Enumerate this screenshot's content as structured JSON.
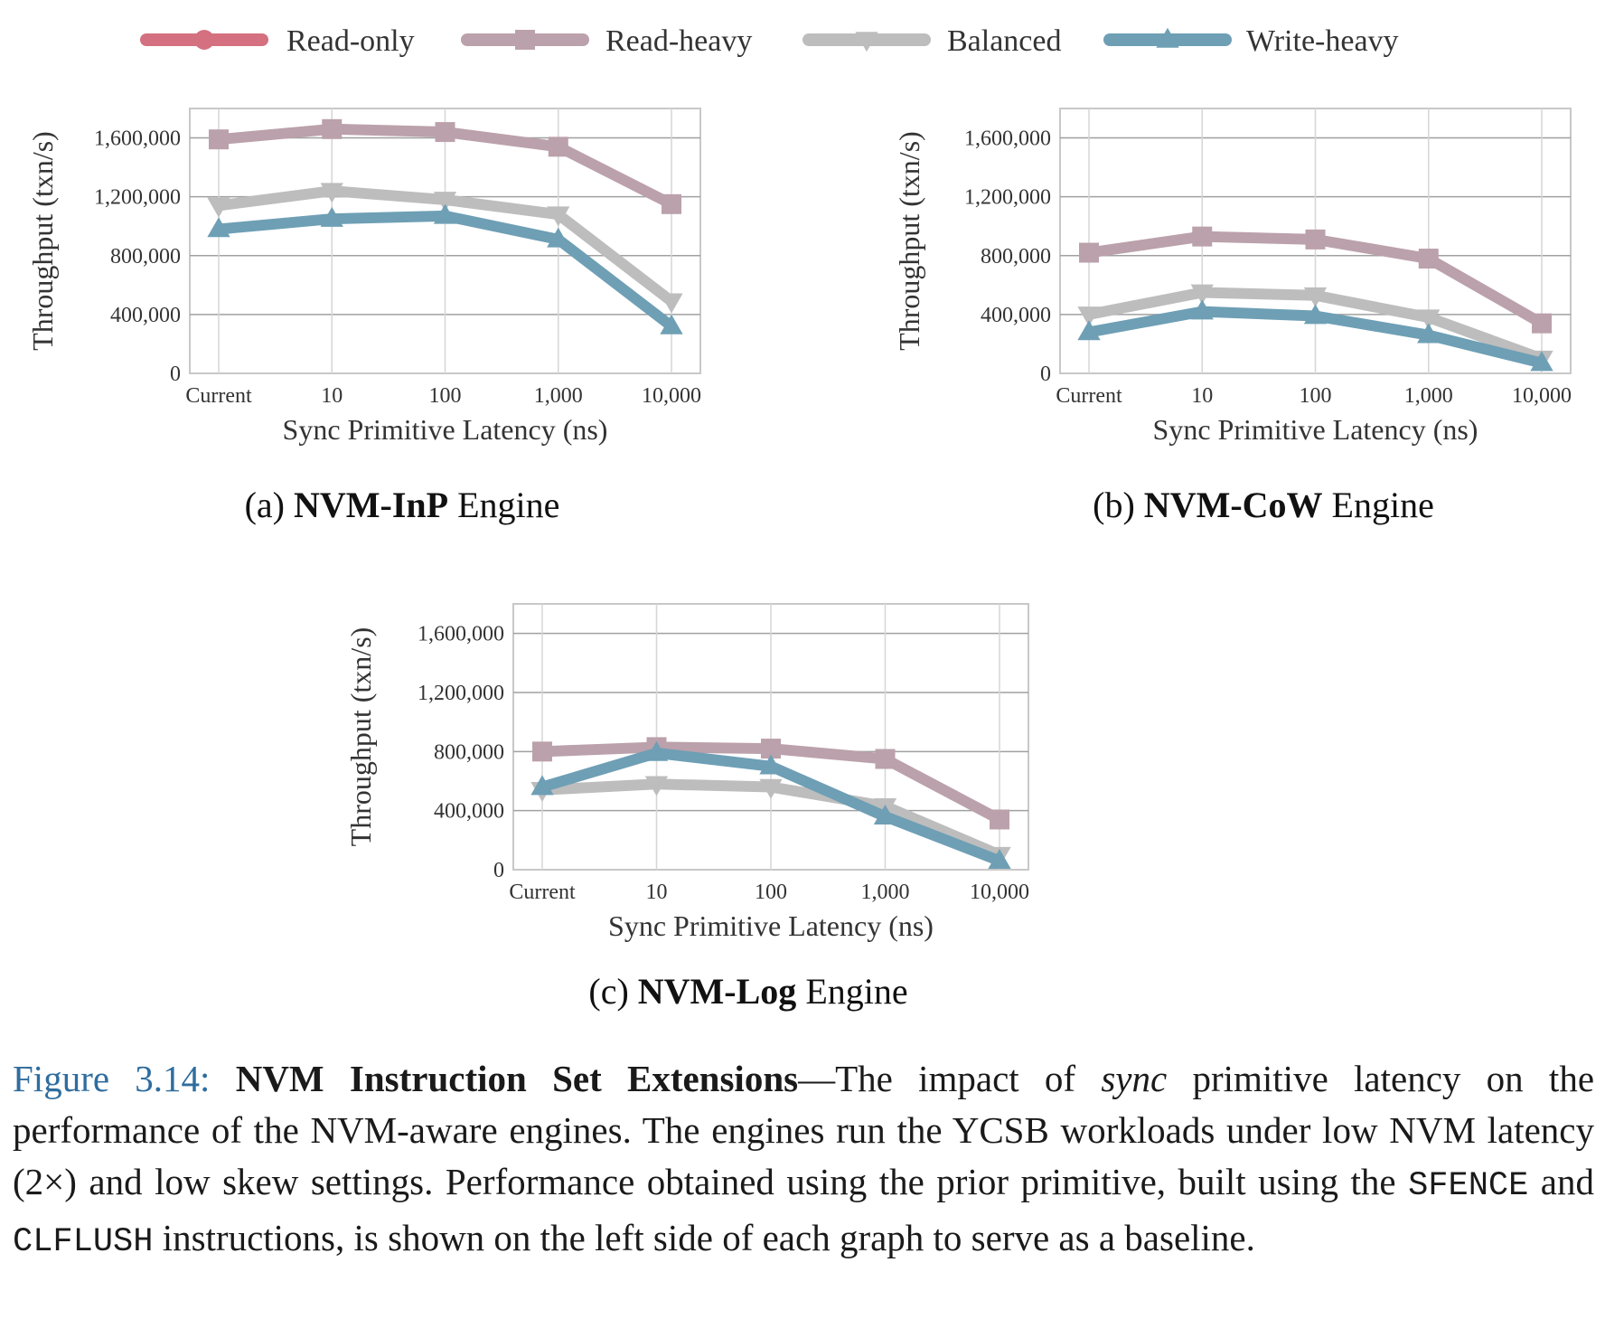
{
  "chart_data": [
    {
      "type": "line",
      "subtitle_prefix": "(a) ",
      "subtitle_bold": "NVM-InP",
      "subtitle_suffix": " Engine",
      "xlabel": "Sync Primitive Latency (ns)",
      "ylabel": "Throughput (txn/s)",
      "categories": [
        "Current",
        "10",
        "100",
        "1,000",
        "10,000"
      ],
      "yticks": [
        "0",
        "400,000",
        "800,000",
        "1,200,000",
        "1,600,000"
      ],
      "ylim": [
        0,
        1800000
      ],
      "grid": true,
      "series": [
        {
          "name": "Read-heavy",
          "values": [
            1590000,
            1660000,
            1640000,
            1540000,
            1150000
          ]
        },
        {
          "name": "Balanced",
          "values": [
            1140000,
            1240000,
            1180000,
            1080000,
            490000
          ]
        },
        {
          "name": "Write-heavy",
          "values": [
            980000,
            1050000,
            1070000,
            910000,
            320000
          ]
        }
      ]
    },
    {
      "type": "line",
      "subtitle_prefix": "(b) ",
      "subtitle_bold": "NVM-CoW",
      "subtitle_suffix": " Engine",
      "xlabel": "Sync Primitive Latency (ns)",
      "ylabel": "Throughput (txn/s)",
      "categories": [
        "Current",
        "10",
        "100",
        "1,000",
        "10,000"
      ],
      "yticks": [
        "0",
        "400,000",
        "800,000",
        "1,200,000",
        "1,600,000"
      ],
      "ylim": [
        0,
        1800000
      ],
      "grid": true,
      "series": [
        {
          "name": "Read-heavy",
          "values": [
            820000,
            930000,
            910000,
            780000,
            340000
          ]
        },
        {
          "name": "Balanced",
          "values": [
            400000,
            550000,
            530000,
            380000,
            100000
          ]
        },
        {
          "name": "Write-heavy",
          "values": [
            280000,
            420000,
            390000,
            260000,
            70000
          ]
        }
      ]
    },
    {
      "type": "line",
      "subtitle_prefix": "(c) ",
      "subtitle_bold": "NVM-Log",
      "subtitle_suffix": " Engine",
      "xlabel": "Sync Primitive Latency (ns)",
      "ylabel": "Throughput (txn/s)",
      "categories": [
        "Current",
        "10",
        "100",
        "1,000",
        "10,000"
      ],
      "yticks": [
        "0",
        "400,000",
        "800,000",
        "1,200,000",
        "1,600,000"
      ],
      "ylim": [
        0,
        1800000
      ],
      "grid": true,
      "series": [
        {
          "name": "Read-heavy",
          "values": [
            800000,
            830000,
            820000,
            750000,
            340000
          ]
        },
        {
          "name": "Balanced",
          "values": [
            540000,
            580000,
            560000,
            430000,
            100000
          ]
        },
        {
          "name": "Write-heavy",
          "values": [
            560000,
            790000,
            700000,
            360000,
            60000
          ]
        }
      ]
    }
  ],
  "legend": {
    "placement": "top",
    "items": [
      {
        "name": "Read-only",
        "color": "#d4707f",
        "marker": "circle"
      },
      {
        "name": "Read-heavy",
        "color": "#bba1ab",
        "marker": "square"
      },
      {
        "name": "Balanced",
        "color": "#bdbdbd",
        "marker": "triangle-down"
      },
      {
        "name": "Write-heavy",
        "color": "#6e9fb5",
        "marker": "triangle-up"
      }
    ]
  },
  "caption": {
    "label": "Figure 3.14:",
    "title": "NVM Instruction Set Extensions",
    "text_1": "—The impact of ",
    "text_italic": "sync",
    "text_2": " primitive latency on the performance of the NVM-aware engines. The engines run the YCSB workloads under low NVM latency (2×) and low skew settings. Performance obtained using the prior primitive, built using the ",
    "code_1": "SFENCE",
    "text_3": " and ",
    "code_2": "CLFLUSH",
    "text_4": " instructions, is shown on the left side of each graph to serve as a baseline."
  }
}
